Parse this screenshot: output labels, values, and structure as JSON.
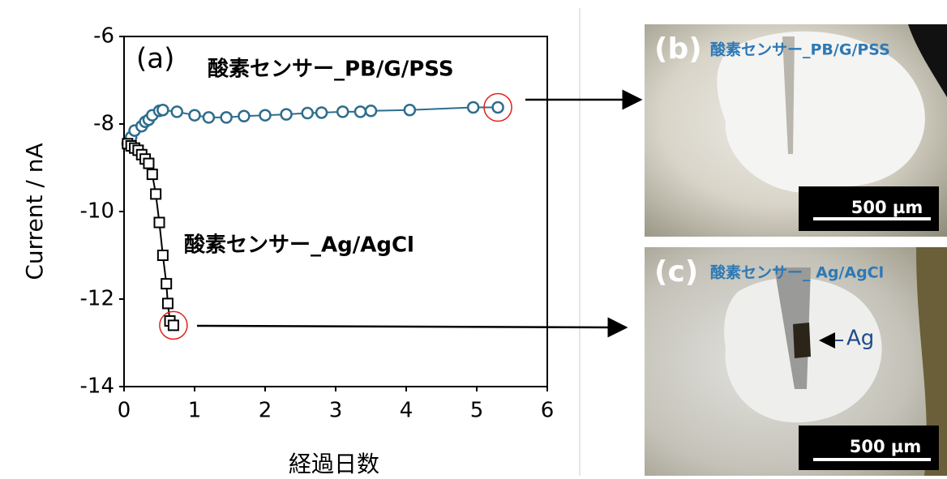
{
  "chart_data": {
    "type": "line",
    "annotation": "(a)",
    "x_label": "経過日数",
    "y_label": "Current / nA",
    "xlim": [
      0,
      6
    ],
    "xticks": [
      0,
      1,
      2,
      3,
      4,
      5,
      6
    ],
    "ylim": [
      -14,
      -6
    ],
    "yticks": [
      -14,
      -12,
      -10,
      -8,
      -6
    ],
    "series": [
      {
        "name": "酸素センサー_PB/G/PSS",
        "color": "#2e6d8c",
        "marker": "circle",
        "x": [
          0.05,
          0.1,
          0.15,
          0.25,
          0.3,
          0.35,
          0.4,
          0.5,
          0.55,
          0.75,
          1.0,
          1.2,
          1.45,
          1.7,
          2.0,
          2.3,
          2.6,
          2.8,
          3.1,
          3.35,
          3.5,
          4.05,
          4.95,
          5.3
        ],
        "values": [
          -8.45,
          -8.3,
          -8.15,
          -8.05,
          -7.95,
          -7.9,
          -7.8,
          -7.7,
          -7.68,
          -7.72,
          -7.8,
          -7.85,
          -7.85,
          -7.82,
          -7.8,
          -7.78,
          -7.75,
          -7.74,
          -7.72,
          -7.72,
          -7.7,
          -7.68,
          -7.62,
          -7.62
        ]
      },
      {
        "name": "酸素センサー_Ag/AgCl",
        "color": "#000000",
        "marker": "square",
        "x": [
          0.05,
          0.1,
          0.15,
          0.2,
          0.25,
          0.3,
          0.35,
          0.4,
          0.45,
          0.5,
          0.55,
          0.6,
          0.62,
          0.65,
          0.7
        ],
        "values": [
          -8.45,
          -8.5,
          -8.55,
          -8.6,
          -8.7,
          -8.8,
          -8.9,
          -9.15,
          -9.6,
          -10.25,
          -11.0,
          -11.65,
          -12.1,
          -12.5,
          -12.6
        ]
      }
    ]
  },
  "panels": [
    {
      "label": "(b)",
      "caption": "酸素センサー_PB/G/PSS",
      "scale": "500 µm"
    },
    {
      "label": "(c)",
      "caption": "酸素センサー_ Ag/AgCl",
      "scale": "500 µm",
      "annotation": "Ag"
    }
  ]
}
